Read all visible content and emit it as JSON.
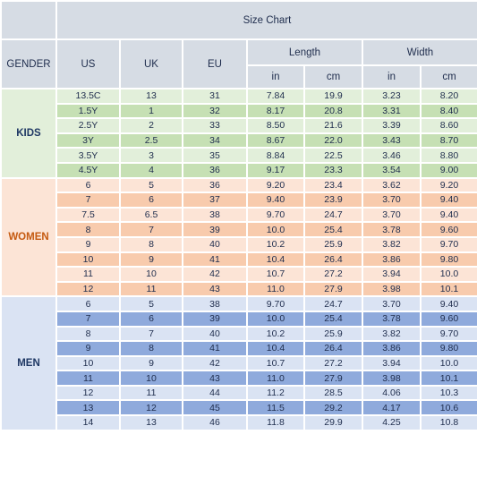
{
  "header": {
    "title": "Size Chart",
    "columns": [
      "GENDER",
      "US",
      "UK",
      "EU",
      "Length",
      "Width"
    ],
    "subcolumns": [
      "in",
      "cm",
      "in",
      "cm"
    ]
  },
  "groups": [
    {
      "gender": "KIDS",
      "rows": [
        [
          "13.5C",
          "13",
          "31",
          "7.84",
          "19.9",
          "3.23",
          "8.20"
        ],
        [
          "1.5Y",
          "1",
          "32",
          "8.17",
          "20.8",
          "3.31",
          "8.40"
        ],
        [
          "2.5Y",
          "2",
          "33",
          "8.50",
          "21.6",
          "3.39",
          "8.60"
        ],
        [
          "3Y",
          "2.5",
          "34",
          "8.67",
          "22.0",
          "3.43",
          "8.70"
        ],
        [
          "3.5Y",
          "3",
          "35",
          "8.84",
          "22.5",
          "3.46",
          "8.80"
        ],
        [
          "4.5Y",
          "4",
          "36",
          "9.17",
          "23.3",
          "3.54",
          "9.00"
        ]
      ]
    },
    {
      "gender": "WOMEN",
      "rows": [
        [
          "6",
          "5",
          "36",
          "9.20",
          "23.4",
          "3.62",
          "9.20"
        ],
        [
          "7",
          "6",
          "37",
          "9.40",
          "23.9",
          "3.70",
          "9.40"
        ],
        [
          "7.5",
          "6.5",
          "38",
          "9.70",
          "24.7",
          "3.70",
          "9.40"
        ],
        [
          "8",
          "7",
          "39",
          "10.0",
          "25.4",
          "3.78",
          "9.60"
        ],
        [
          "9",
          "8",
          "40",
          "10.2",
          "25.9",
          "3.82",
          "9.70"
        ],
        [
          "10",
          "9",
          "41",
          "10.4",
          "26.4",
          "3.86",
          "9.80"
        ],
        [
          "11",
          "10",
          "42",
          "10.7",
          "27.2",
          "3.94",
          "10.0"
        ],
        [
          "12",
          "11",
          "43",
          "11.0",
          "27.9",
          "3.98",
          "10.1"
        ]
      ]
    },
    {
      "gender": "MEN",
      "rows": [
        [
          "6",
          "5",
          "38",
          "9.70",
          "24.7",
          "3.70",
          "9.40"
        ],
        [
          "7",
          "6",
          "39",
          "10.0",
          "25.4",
          "3.78",
          "9.60"
        ],
        [
          "8",
          "7",
          "40",
          "10.2",
          "25.9",
          "3.82",
          "9.70"
        ],
        [
          "9",
          "8",
          "41",
          "10.4",
          "26.4",
          "3.86",
          "9.80"
        ],
        [
          "10",
          "9",
          "42",
          "10.7",
          "27.2",
          "3.94",
          "10.0"
        ],
        [
          "11",
          "10",
          "43",
          "11.0",
          "27.9",
          "3.98",
          "10.1"
        ],
        [
          "12",
          "11",
          "44",
          "11.2",
          "28.5",
          "4.06",
          "10.3"
        ],
        [
          "13",
          "12",
          "45",
          "11.5",
          "29.2",
          "4.17",
          "10.6"
        ],
        [
          "14",
          "13",
          "46",
          "11.8",
          "29.9",
          "4.25",
          "10.8"
        ]
      ]
    }
  ]
}
